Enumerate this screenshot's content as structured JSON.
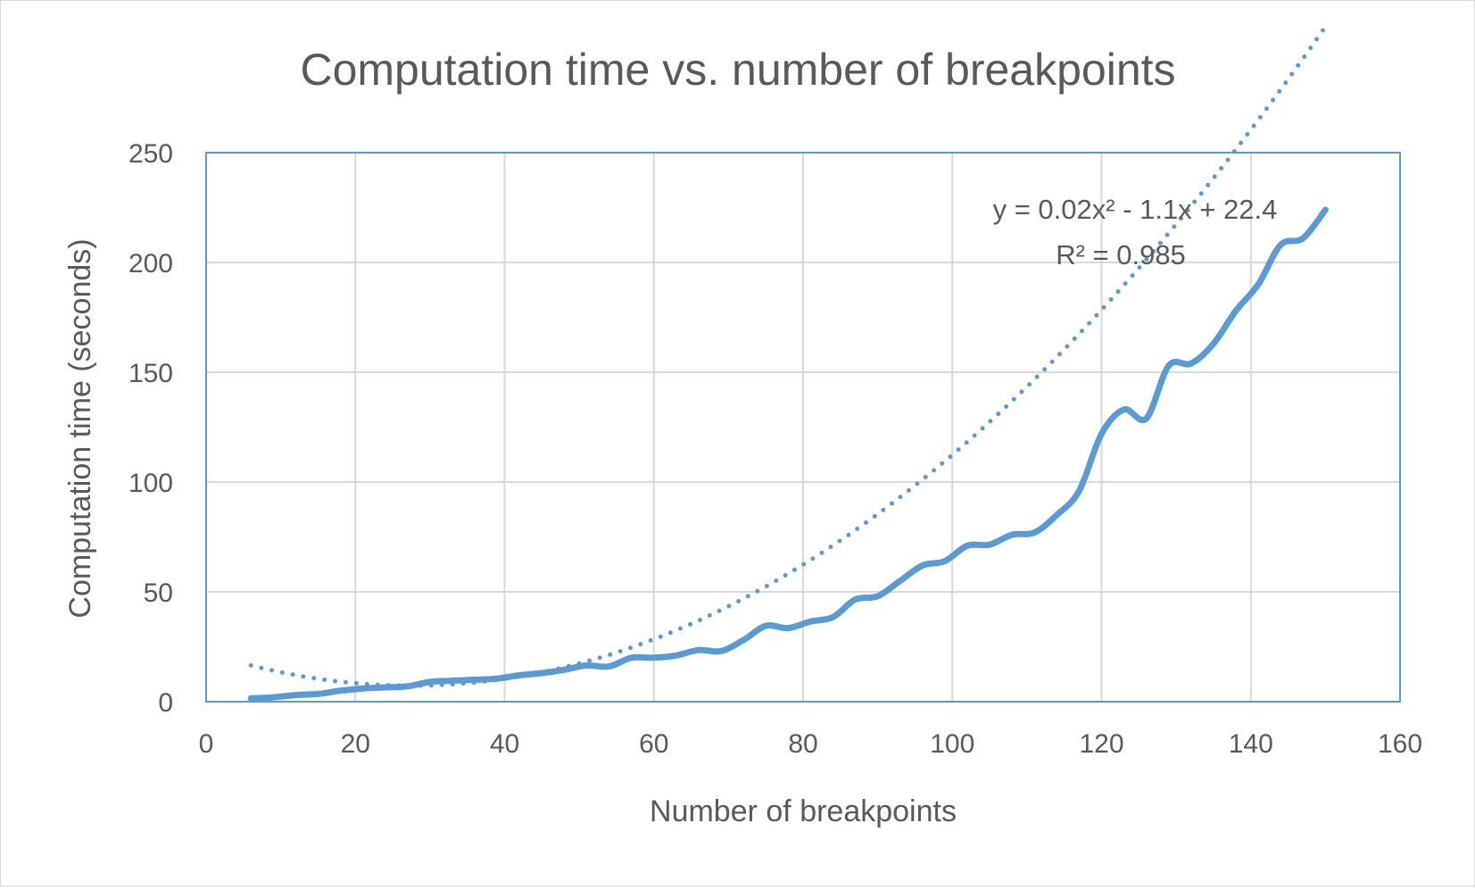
{
  "chart_data": {
    "type": "line",
    "title": "Computation time vs. number of breakpoints",
    "xlabel": "Number of breakpoints",
    "ylabel": "Computation time (seconds)",
    "xlim": [
      0,
      160
    ],
    "ylim": [
      0,
      250
    ],
    "x_ticks": [
      0,
      20,
      40,
      60,
      80,
      100,
      120,
      140,
      160
    ],
    "y_ticks": [
      0,
      50,
      100,
      150,
      200,
      250
    ],
    "grid": true,
    "legend": "none",
    "series": [
      {
        "x": [
          6,
          9,
          12,
          15,
          18,
          21,
          24,
          27,
          30,
          33,
          36,
          39,
          42,
          45,
          48,
          51,
          54,
          57,
          60,
          63,
          66,
          69,
          72,
          75,
          78,
          81,
          84,
          87,
          90,
          93,
          96,
          99,
          102,
          105,
          108,
          111,
          114,
          117,
          120,
          123,
          126,
          129,
          132,
          135,
          138,
          141,
          144,
          147,
          150
        ],
        "y": [
          1.5,
          2,
          3,
          3.5,
          5,
          6,
          6.5,
          7,
          9,
          9.5,
          10,
          10.5,
          12,
          13,
          14.5,
          16.5,
          16,
          20,
          20,
          21,
          23.5,
          23,
          28,
          34.5,
          33.5,
          36.5,
          38.5,
          46.5,
          48,
          55,
          62,
          64,
          71,
          71.5,
          76,
          77,
          85,
          96,
          122,
          133,
          129,
          153,
          154,
          163,
          178,
          190,
          208,
          211,
          224
        ],
        "color": "#5B9BD5",
        "smooth": true
      }
    ],
    "trendline": {
      "type": "polynomial",
      "order": 2,
      "coefficients": [
        0.02,
        -1.1,
        22.4
      ],
      "x_range": [
        6,
        150
      ],
      "style": "dotted",
      "color": "#5B9BD5",
      "equation_label": "y = 0.02x² - 1.1x + 22.4",
      "r2_label": "R² = 0.985"
    },
    "colors": {
      "series": "#5B9BD5",
      "plot_border": "#5B9BD5",
      "grid": "#d9d9d9",
      "text": "#595959"
    }
  }
}
